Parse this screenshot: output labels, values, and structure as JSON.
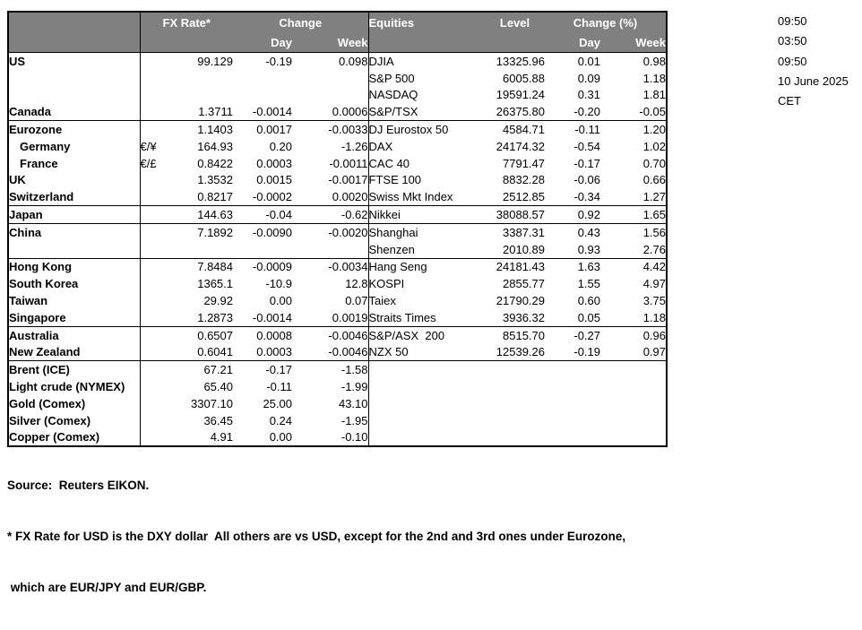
{
  "colors": {
    "header_bg": "#808080",
    "header_text": "#FFFFFF",
    "border": "#000000"
  },
  "header": {
    "fx_rate": "FX Rate*",
    "change": "Change",
    "day": "Day",
    "week": "Week",
    "equities": "Equities",
    "level": "Level",
    "change_pct": "Change (%)"
  },
  "rows": [
    {
      "name": "US",
      "fx": "99.129",
      "fx_day": "-0.19",
      "fx_week": "0.098",
      "eq": "DJIA",
      "level": "13325.96",
      "eq_day": "0.01",
      "eq_week": "0.98"
    },
    {
      "eq": "S&P 500",
      "level": "6005.88",
      "eq_day": "0.09",
      "eq_week": "1.18"
    },
    {
      "eq": "NASDAQ",
      "level": "19591.24",
      "eq_day": "0.31",
      "eq_week": "1.81"
    },
    {
      "name": "Canada",
      "fx": "1.3711",
      "fx_day": "-0.0014",
      "fx_week": "0.0006",
      "eq": "S&P/TSX",
      "level": "26375.80",
      "eq_day": "-0.20",
      "eq_week": "-0.05",
      "sec": true
    },
    {
      "name": "Eurozone",
      "fx": "1.1403",
      "fx_day": "0.0017",
      "fx_week": "-0.0033",
      "eq": "DJ Eurostox 50",
      "level": "4584.71",
      "eq_day": "-0.11",
      "eq_week": "1.20"
    },
    {
      "name": "Germany",
      "indent": true,
      "sym": "€/¥",
      "fx": "164.93",
      "fx_day": "0.20",
      "fx_week": "-1.26",
      "eq": "DAX",
      "level": "24174.32",
      "eq_day": "-0.54",
      "eq_week": "1.02"
    },
    {
      "name": "France",
      "indent": true,
      "sym": "€/£",
      "fx": "0.8422",
      "fx_day": "0.0003",
      "fx_week": "-0.0011",
      "eq": "CAC 40",
      "level": "7791.47",
      "eq_day": "-0.17",
      "eq_week": "0.70"
    },
    {
      "name": "UK",
      "fx": "1.3532",
      "fx_day": "0.0015",
      "fx_week": "-0.0017",
      "eq": "FTSE 100",
      "level": "8832.28",
      "eq_day": "-0.06",
      "eq_week": "0.66"
    },
    {
      "name": "Switzerland",
      "fx": "0.8217",
      "fx_day": "-0.0002",
      "fx_week": "0.0020",
      "eq": "Swiss Mkt Index",
      "level": "2512.85",
      "eq_day": "-0.34",
      "eq_week": "1.27",
      "sec": true
    },
    {
      "name": "Japan",
      "fx": "144.63",
      "fx_day": "-0.04",
      "fx_week": "-0.62",
      "eq": "Nikkei",
      "level": "38088.57",
      "eq_day": "0.92",
      "eq_week": "1.65",
      "sec": true
    },
    {
      "name": "China",
      "fx": "7.1892",
      "fx_day": "-0.0090",
      "fx_week": "-0.0020",
      "eq": "Shanghai",
      "level": "3387.31",
      "eq_day": "0.43",
      "eq_week": "1.56"
    },
    {
      "eq": "Shenzen",
      "level": "2010.89",
      "eq_day": "0.93",
      "eq_week": "2.76",
      "sec": true
    },
    {
      "name": "Hong Kong",
      "fx": "7.8484",
      "fx_day": "-0.0009",
      "fx_week": "-0.0034",
      "eq": "Hang Seng",
      "level": "24181.43",
      "eq_day": "1.63",
      "eq_week": "4.42"
    },
    {
      "name": "South Korea",
      "fx": "1365.1",
      "fx_day": "-10.9",
      "fx_week": "12.8",
      "eq": "KOSPI",
      "level": "2855.77",
      "eq_day": "1.55",
      "eq_week": "4.97"
    },
    {
      "name": "Taiwan",
      "fx": "29.92",
      "fx_day": "0.00",
      "fx_week": "0.07",
      "eq": "Taiex",
      "level": "21790.29",
      "eq_day": "0.60",
      "eq_week": "3.75"
    },
    {
      "name": "Singapore",
      "fx": "1.2873",
      "fx_day": "-0.0014",
      "fx_week": "0.0019",
      "eq": "Straits Times",
      "level": "3936.32",
      "eq_day": "0.05",
      "eq_week": "1.18",
      "sec": true
    },
    {
      "name": "Australia",
      "fx": "0.6507",
      "fx_day": "0.0008",
      "fx_week": "-0.0046",
      "eq": "S&P/ASX  200",
      "level": "8515.70",
      "eq_day": "-0.27",
      "eq_week": "0.96"
    },
    {
      "name": "New Zealand",
      "fx": "0.6041",
      "fx_day": "0.0003",
      "fx_week": "-0.0046",
      "eq": "NZX 50",
      "level": "12539.26",
      "eq_day": "-0.19",
      "eq_week": "0.97",
      "sec": true
    },
    {
      "name": "Brent (ICE)",
      "fx": "67.21",
      "fx_day": "-0.17",
      "fx_week": "-1.58"
    },
    {
      "name": "Light crude (NYMEX)",
      "fx": "65.40",
      "fx_day": "-0.11",
      "fx_week": "-1.99"
    },
    {
      "name": "Gold (Comex)",
      "fx": "3307.10",
      "fx_day": "25.00",
      "fx_week": "43.10"
    },
    {
      "name": "Silver (Comex)",
      "fx": "36.45",
      "fx_day": "0.24",
      "fx_week": "-1.95"
    },
    {
      "name": "Copper (Comex)",
      "fx": "4.91",
      "fx_day": "0.00",
      "fx_week": "-0.10"
    }
  ],
  "timestamps": [
    "09:50",
    "03:50",
    "09:50",
    "10 June 2025",
    "CET"
  ],
  "footer": {
    "source": "Source:  Reuters EIKON.",
    "note1": "* FX Rate for USD is the DXY dollar  All others are vs USD, except for the 2nd and 3rd ones under Eurozone,",
    "note2": " which are EUR/JPY and EUR/GBP."
  }
}
